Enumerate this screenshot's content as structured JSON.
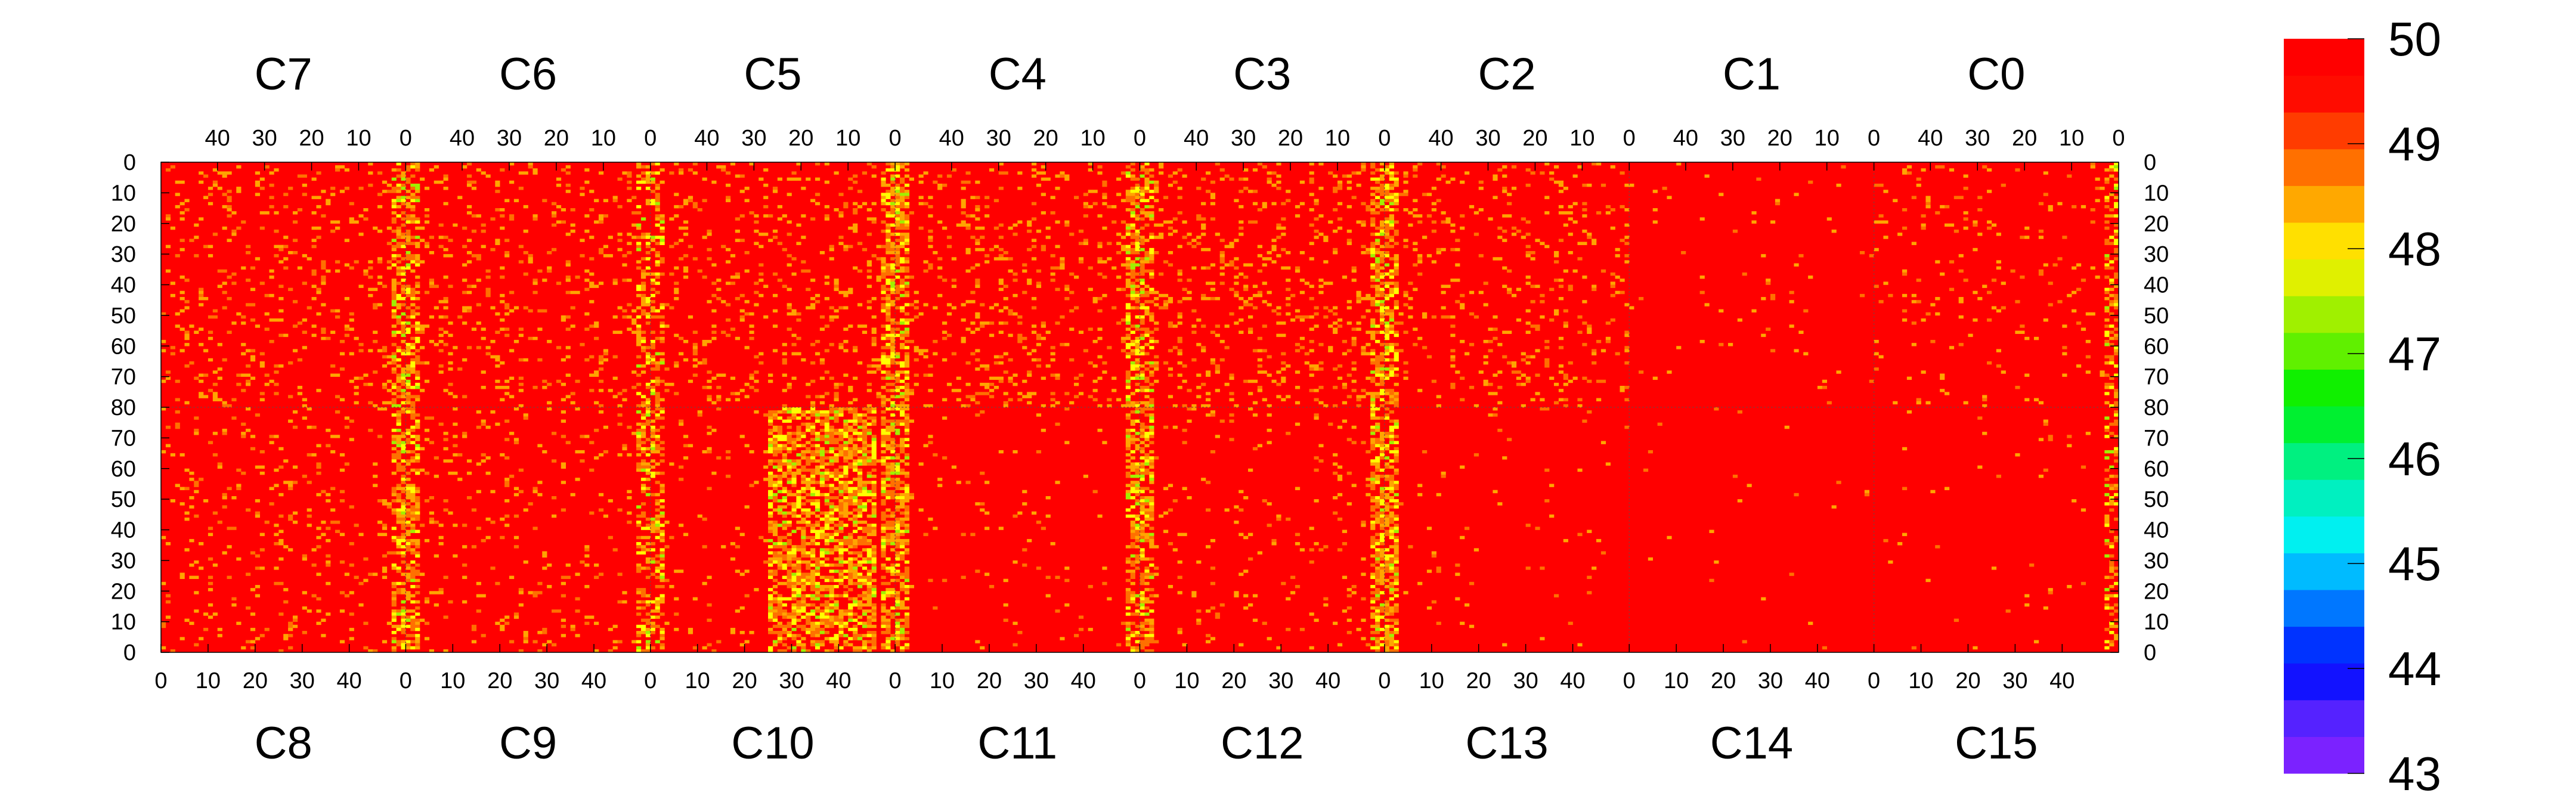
{
  "chart_data": {
    "type": "heatmap",
    "title": "",
    "z_range": [
      43,
      50
    ],
    "colorbar": {
      "labels": [
        "50",
        "49",
        "48",
        "47",
        "46",
        "45",
        "44",
        "43"
      ],
      "palette": [
        "#7B22FF",
        "#5522FF",
        "#1212FF",
        "#0033FF",
        "#0077FF",
        "#00BBFF",
        "#00F0F0",
        "#00F0C0",
        "#00F080",
        "#00F030",
        "#10F000",
        "#60F000",
        "#A0F000",
        "#E0F000",
        "#FFE000",
        "#FFA800",
        "#FF7000",
        "#FF3C00",
        "#FF0C00",
        "#FF0000"
      ],
      "color_max": "#ff0000",
      "color_mid": "#ffa500",
      "color_low": "#ffff00"
    },
    "top_chips": [
      "C7",
      "C6",
      "C5",
      "C4",
      "C3",
      "C2",
      "C1",
      "C0"
    ],
    "bottom_chips": [
      "C8",
      "C9",
      "C10",
      "C11",
      "C12",
      "C13",
      "C14",
      "C15"
    ],
    "top_x_ticks": [
      "40",
      "30",
      "20",
      "10",
      "0"
    ],
    "bottom_x_ticks": [
      "0",
      "10",
      "20",
      "30",
      "40"
    ],
    "top_y_ticks": [
      "0",
      "10",
      "20",
      "30",
      "40",
      "50",
      "60",
      "70",
      "80"
    ],
    "bottom_y_ticks": [
      "70",
      "60",
      "50",
      "40",
      "30",
      "20",
      "10",
      "0"
    ],
    "columns_per_chip": 52,
    "rows_per_half": 80,
    "noise_density_top": [
      0.22,
      0.22,
      0.24,
      0.28,
      0.3,
      0.22,
      0.03,
      0.1
    ],
    "noise_density_bottom": [
      0.16,
      0.14,
      0.1,
      0.05,
      0.1,
      0.03,
      0.02,
      0.02
    ],
    "c10_hot_region": {
      "col_start": 25,
      "col_end": 47,
      "density": 0.62
    },
    "edge_bands": [
      {
        "chip_boundary": 1,
        "density": 0.55
      },
      {
        "chip_boundary": 2,
        "density": 0.42
      },
      {
        "chip_boundary": 3,
        "density": 0.6
      },
      {
        "chip_boundary": 4,
        "density": 0.55
      },
      {
        "chip_boundary": 5,
        "density": 0.62
      },
      {
        "chip_boundary": 8,
        "density": 0.35
      }
    ]
  }
}
